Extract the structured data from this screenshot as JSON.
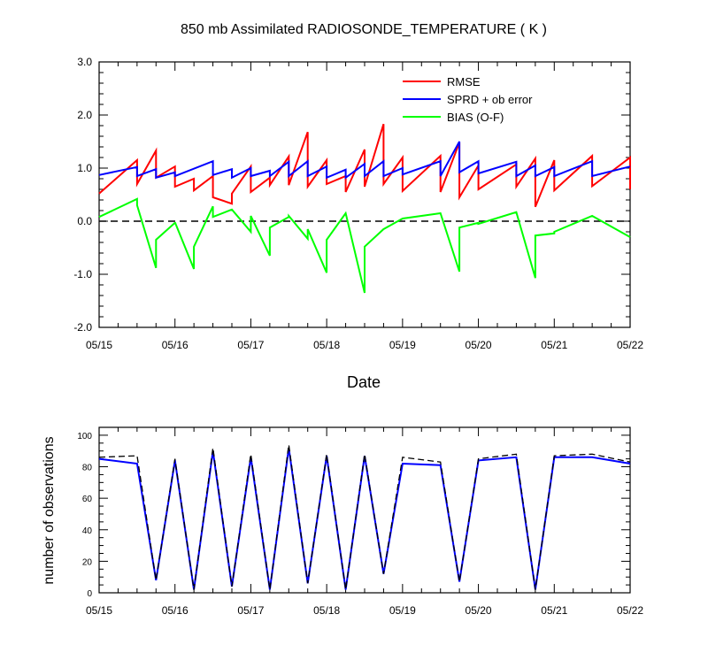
{
  "chart_data": [
    {
      "type": "line",
      "title": "850 mb Assimilated RADIOSONDE_TEMPERATURE ( K )",
      "xlabel": "Date",
      "ylabel": "",
      "xlim": [
        0,
        7
      ],
      "ylim": [
        -2.0,
        3.0
      ],
      "x_ticks": [
        0,
        1,
        2,
        3,
        4,
        5,
        6,
        7
      ],
      "x_tick_labels": [
        "05/15",
        "05/16",
        "05/17",
        "05/18",
        "05/19",
        "05/20",
        "05/21",
        "05/22"
      ],
      "y_ticks": [
        -2.0,
        -1.0,
        0.0,
        1.0,
        2.0,
        3.0
      ],
      "y_tick_labels": [
        "-2.0",
        "-1.0",
        "0.0",
        "1.0",
        "2.0",
        "3.0"
      ],
      "zero_line": 0.0,
      "legend_position": "top-right",
      "series": [
        {
          "name": "RMSE",
          "color": "#ff0000",
          "x": [
            0,
            0.5,
            0.5,
            0.75,
            0.75,
            1.0,
            1.0,
            1.25,
            1.25,
            1.5,
            1.5,
            1.75,
            1.75,
            2.0,
            2.0,
            2.25,
            2.25,
            2.5,
            2.5,
            2.75,
            2.75,
            3.0,
            3.0,
            3.25,
            3.25,
            3.5,
            3.5,
            3.75,
            3.75,
            4.0,
            4.0,
            4.5,
            4.5,
            4.75,
            4.75,
            5.0,
            5.0,
            5.5,
            5.5,
            5.75,
            5.75,
            6.0,
            6.0,
            6.5,
            6.5,
            7.0,
            7.0
          ],
          "values": [
            0.52,
            1.15,
            0.7,
            1.33,
            0.82,
            1.03,
            0.65,
            0.8,
            0.58,
            0.85,
            0.45,
            0.33,
            0.52,
            1.03,
            0.55,
            0.82,
            0.68,
            1.22,
            0.68,
            1.68,
            0.65,
            1.15,
            0.7,
            0.85,
            0.55,
            1.35,
            0.65,
            1.83,
            0.7,
            1.2,
            0.57,
            1.23,
            0.55,
            1.48,
            0.45,
            1.05,
            0.6,
            1.07,
            0.65,
            1.18,
            0.27,
            1.15,
            0.58,
            1.23,
            0.66,
            1.2,
            0.6
          ]
        },
        {
          "name": "SPRD + ob error",
          "color": "#0000ff",
          "x": [
            0,
            0.5,
            0.5,
            0.75,
            0.75,
            1.0,
            1.0,
            1.5,
            1.5,
            1.75,
            1.75,
            2.0,
            2.0,
            2.25,
            2.25,
            2.5,
            2.5,
            2.75,
            2.75,
            3.0,
            3.0,
            3.25,
            3.25,
            3.5,
            3.5,
            3.75,
            3.75,
            4.0,
            4.0,
            4.5,
            4.5,
            4.75,
            4.75,
            5.0,
            5.0,
            5.5,
            5.5,
            5.75,
            5.75,
            6.0,
            6.0,
            6.5,
            6.5,
            7.0
          ],
          "values": [
            0.87,
            1.02,
            0.85,
            0.98,
            0.82,
            0.92,
            0.85,
            1.13,
            0.87,
            0.98,
            0.82,
            1.0,
            0.85,
            0.95,
            0.85,
            1.12,
            0.85,
            1.13,
            0.85,
            1.03,
            0.82,
            0.97,
            0.82,
            1.08,
            0.85,
            1.13,
            0.85,
            1.0,
            0.88,
            1.13,
            0.85,
            1.5,
            0.92,
            1.13,
            0.9,
            1.12,
            0.85,
            1.05,
            0.85,
            1.02,
            0.85,
            1.13,
            0.85,
            1.03
          ]
        },
        {
          "name": "BIAS (O-F)",
          "color": "#00ff00",
          "x": [
            0,
            0.5,
            0.5,
            0.75,
            0.75,
            1.0,
            1.0,
            1.25,
            1.25,
            1.5,
            1.5,
            1.75,
            1.75,
            2.0,
            2.0,
            2.25,
            2.25,
            2.5,
            2.5,
            2.75,
            2.75,
            3.0,
            3.0,
            3.25,
            3.25,
            3.5,
            3.5,
            3.75,
            3.75,
            4.0,
            4.0,
            4.5,
            4.5,
            4.75,
            4.75,
            5.0,
            5.0,
            5.5,
            5.5,
            5.75,
            5.75,
            6.0,
            6.0,
            6.5,
            6.5,
            7.0
          ],
          "values": [
            0.08,
            0.42,
            0.3,
            -0.88,
            -0.35,
            -0.03,
            -0.02,
            -0.9,
            -0.48,
            0.28,
            0.08,
            0.22,
            0.22,
            -0.2,
            0.1,
            -0.65,
            -0.12,
            0.08,
            0.1,
            -0.33,
            -0.15,
            -0.97,
            -0.35,
            0.15,
            0.15,
            -1.35,
            -0.48,
            -0.15,
            -0.15,
            0.05,
            0.05,
            0.15,
            0.15,
            -0.95,
            -0.12,
            -0.03,
            -0.05,
            0.17,
            0.17,
            -1.07,
            -0.27,
            -0.23,
            -0.2,
            0.1,
            0.1,
            -0.3
          ]
        }
      ]
    },
    {
      "type": "line",
      "title": "",
      "xlabel": "",
      "ylabel": "number of observations",
      "xlim": [
        0,
        7
      ],
      "ylim": [
        0,
        105
      ],
      "x_ticks": [
        0,
        1,
        2,
        3,
        4,
        5,
        6,
        7
      ],
      "x_tick_labels": [
        "05/15",
        "05/16",
        "05/17",
        "05/18",
        "05/19",
        "05/20",
        "05/21",
        "05/22"
      ],
      "y_ticks": [
        0,
        20,
        40,
        60,
        80,
        100
      ],
      "y_tick_labels": [
        "0",
        "20",
        "40",
        "60",
        "80",
        "100"
      ],
      "series": [
        {
          "color": "#0000ff",
          "style": "solid",
          "x": [
            0,
            0.5,
            0.75,
            1.0,
            1.25,
            1.5,
            1.75,
            2.0,
            2.25,
            2.5,
            2.75,
            3.0,
            3.25,
            3.5,
            3.75,
            4.0,
            4.5,
            4.75,
            5.0,
            5.5,
            5.75,
            6.0,
            6.5,
            7.0
          ],
          "values": [
            85,
            82,
            8,
            84,
            2,
            90,
            4,
            86,
            2,
            92,
            6,
            87,
            2,
            87,
            12,
            82,
            81,
            7,
            84,
            86,
            2,
            86,
            86,
            82
          ]
        },
        {
          "color": "#000000",
          "style": "dashed",
          "x": [
            0,
            0.5,
            0.75,
            1.0,
            1.25,
            1.5,
            1.75,
            2.0,
            2.25,
            2.5,
            2.75,
            3.0,
            3.25,
            3.5,
            3.75,
            4.0,
            4.5,
            4.75,
            5.0,
            5.5,
            5.75,
            6.0,
            6.5,
            7.0
          ],
          "values": [
            86,
            87,
            8,
            85,
            2,
            92,
            4,
            88,
            2,
            94,
            6,
            88,
            2,
            88,
            12,
            86,
            83,
            7,
            85,
            88,
            2,
            87,
            88,
            83
          ]
        }
      ]
    }
  ]
}
